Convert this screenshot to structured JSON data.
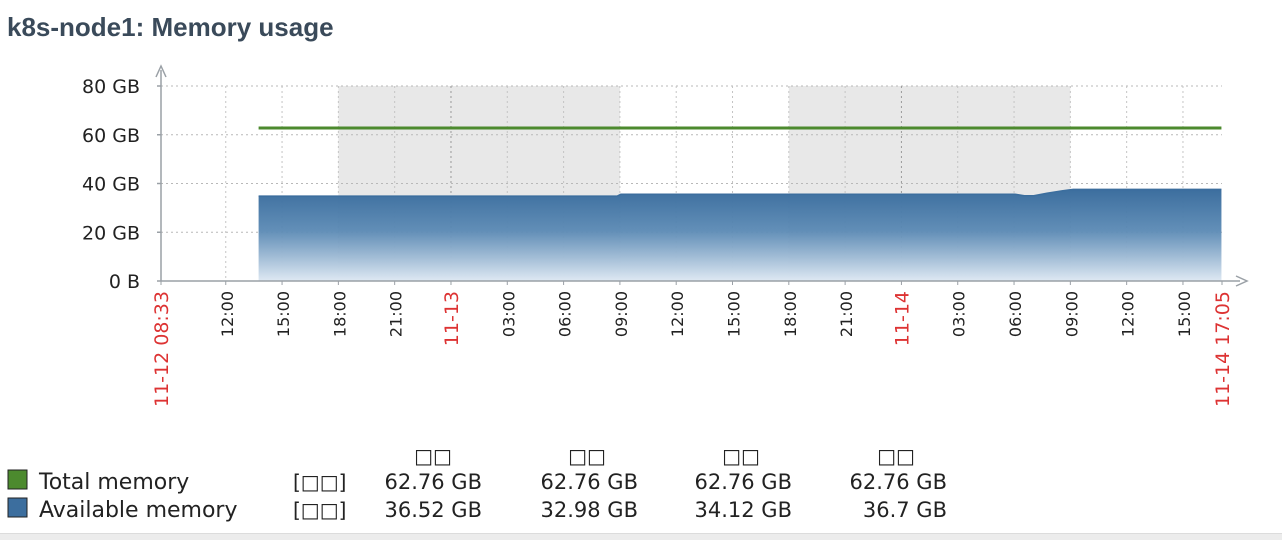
{
  "page": {
    "title": "k8s-node1: Memory usage"
  },
  "chart_data": {
    "type": "area",
    "title": "k8s-node1: Memory usage",
    "y_ticks": [
      "0 B",
      "20 GB",
      "40 GB",
      "60 GB",
      "80 GB"
    ],
    "ylim": [
      0,
      80
    ],
    "y_unit": "GB",
    "x_range": [
      "11-12 08:33",
      "11-14 17:05"
    ],
    "x_tick_labels": [
      {
        "label": "11-12 08:33",
        "hour": 0.0,
        "color": "#dd3333"
      },
      {
        "label": "12:00",
        "hour": 3.45,
        "color": "#222222"
      },
      {
        "label": "15:00",
        "hour": 6.45,
        "color": "#222222"
      },
      {
        "label": "18:00",
        "hour": 9.45,
        "color": "#222222"
      },
      {
        "label": "21:00",
        "hour": 12.45,
        "color": "#222222"
      },
      {
        "label": "11-13",
        "hour": 15.45,
        "color": "#dd3333"
      },
      {
        "label": "03:00",
        "hour": 18.45,
        "color": "#222222"
      },
      {
        "label": "06:00",
        "hour": 21.45,
        "color": "#222222"
      },
      {
        "label": "09:00",
        "hour": 24.45,
        "color": "#222222"
      },
      {
        "label": "12:00",
        "hour": 27.45,
        "color": "#222222"
      },
      {
        "label": "15:00",
        "hour": 30.45,
        "color": "#222222"
      },
      {
        "label": "18:00",
        "hour": 33.45,
        "color": "#222222"
      },
      {
        "label": "21:00",
        "hour": 36.45,
        "color": "#222222"
      },
      {
        "label": "11-14",
        "hour": 39.45,
        "color": "#dd3333"
      },
      {
        "label": "03:00",
        "hour": 42.45,
        "color": "#222222"
      },
      {
        "label": "06:00",
        "hour": 45.45,
        "color": "#222222"
      },
      {
        "label": "09:00",
        "hour": 48.45,
        "color": "#222222"
      },
      {
        "label": "12:00",
        "hour": 51.45,
        "color": "#222222"
      },
      {
        "label": "15:00",
        "hour": 54.45,
        "color": "#222222"
      },
      {
        "label": "11-14 17:05",
        "hour": 56.53,
        "color": "#dd3333"
      }
    ],
    "night_bands": [
      {
        "start_hour": 9.45,
        "end_hour": 24.45
      },
      {
        "start_hour": 33.45,
        "end_hour": 48.45
      }
    ],
    "series": [
      {
        "name": "Total memory",
        "color": "#4c8a2e",
        "style": "line",
        "points": [
          [
            5.2,
            62.76
          ],
          [
            56.5,
            62.76
          ]
        ]
      },
      {
        "name": "Available memory",
        "color": "#3c6e9e",
        "style": "area",
        "points": [
          [
            5.2,
            34.8
          ],
          [
            24.3,
            34.8
          ],
          [
            24.5,
            35.6
          ],
          [
            45.5,
            35.6
          ],
          [
            46.0,
            35.0
          ],
          [
            46.5,
            35.0
          ],
          [
            47.2,
            36.0
          ],
          [
            48.0,
            37.0
          ],
          [
            48.6,
            37.6
          ],
          [
            56.5,
            37.6
          ]
        ]
      }
    ],
    "legend": {
      "column_headers": [
        "□□",
        "□□",
        "□□",
        "□□"
      ],
      "rows": [
        {
          "name": "Total memory",
          "color": "#4c8a2e",
          "unit_label": "[□□]",
          "values": [
            "62.76 GB",
            "62.76 GB",
            "62.76 GB",
            "62.76 GB"
          ]
        },
        {
          "name": "Available memory",
          "color": "#3c6e9e",
          "unit_label": "[□□]",
          "values": [
            "36.52 GB",
            "32.98 GB",
            "34.12 GB",
            "36.7 GB"
          ]
        }
      ]
    },
    "grid": true
  }
}
